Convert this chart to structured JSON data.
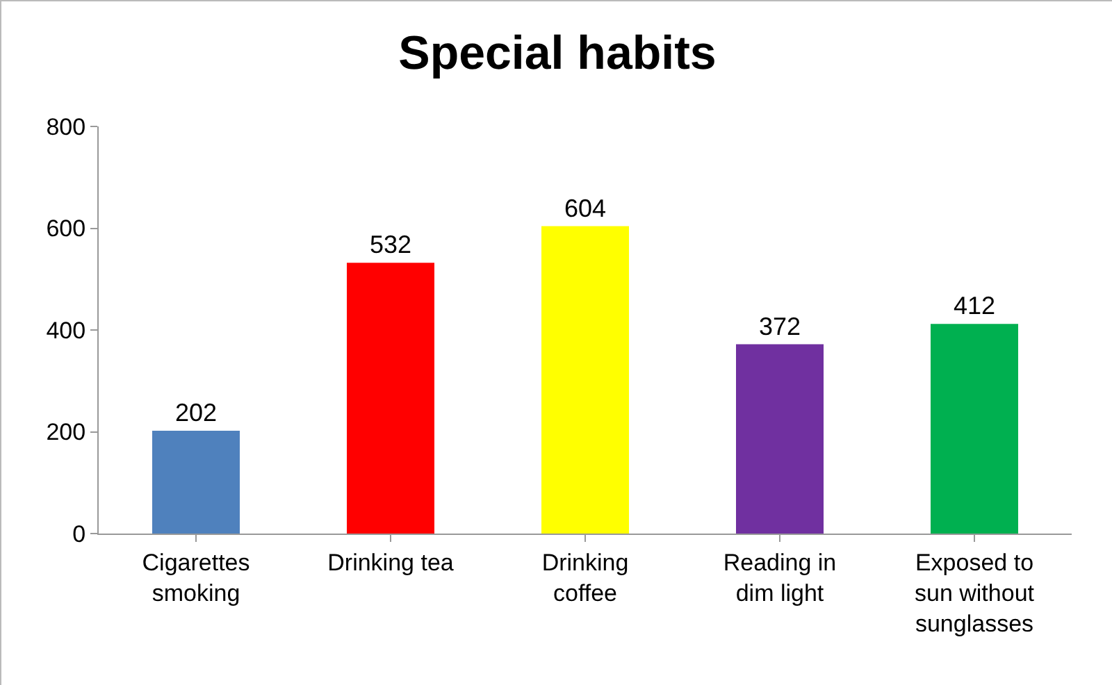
{
  "chart_data": {
    "type": "bar",
    "title": "Special habits",
    "categories": [
      "Cigarettes smoking",
      "Drinking tea",
      "Drinking coffee",
      "Reading in dim light",
      "Exposed to sun without sunglasses"
    ],
    "values": [
      202,
      532,
      604,
      372,
      412
    ],
    "colors": [
      "#4f81bd",
      "#ff0000",
      "#ffff00",
      "#7030a0",
      "#00b050"
    ],
    "ylim": [
      0,
      800
    ],
    "yticks": [
      0,
      200,
      400,
      600,
      800
    ],
    "grid": false,
    "data_labels": true
  }
}
